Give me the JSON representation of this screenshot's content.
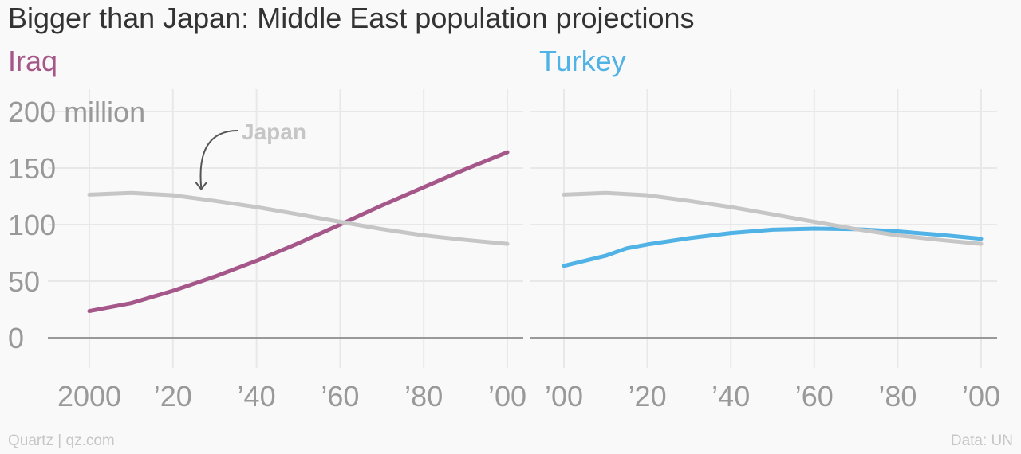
{
  "title": "Bigger than Japan: Middle East population projections",
  "source": "Quartz | qz.com",
  "credit": "Data: UN",
  "colors": {
    "background": "#f9f9f9",
    "iraq": "#a55789",
    "turkey": "#51b2e5",
    "japan": "#c6c6c6",
    "grid": "#e8e8e8",
    "axis_text": "#999999",
    "title_text": "#333333"
  },
  "chart_data": [
    {
      "type": "line",
      "title": "Iraq",
      "title_color": "#a55789",
      "x_range": [
        2000,
        2100
      ],
      "ylim": [
        0,
        200
      ],
      "y_ticks": [
        0,
        50,
        100,
        150,
        200
      ],
      "y_tick_labels": [
        "0",
        "50",
        "100",
        "150",
        "200 million"
      ],
      "x_ticks": [
        2000,
        2020,
        2040,
        2060,
        2080,
        2100
      ],
      "x_tick_labels": [
        "2000",
        "’20",
        "’40",
        "’60",
        "’80",
        "’00"
      ],
      "grid": true,
      "annotation": {
        "text": "Japan",
        "target_series": "Japan",
        "target_x": 2026,
        "target_y": 127
      },
      "series": [
        {
          "name": "Iraq",
          "color": "#a55789",
          "x": [
            2000,
            2010,
            2020,
            2030,
            2040,
            2050,
            2060,
            2070,
            2080,
            2090,
            2100
          ],
          "values": [
            23.5,
            30.5,
            41.5,
            54,
            68,
            83.5,
            100,
            117,
            133,
            149,
            164
          ]
        },
        {
          "name": "Japan",
          "color": "#c6c6c6",
          "x": [
            2000,
            2010,
            2020,
            2030,
            2040,
            2050,
            2060,
            2070,
            2080,
            2090,
            2100
          ],
          "values": [
            126.5,
            128,
            126,
            121,
            115.5,
            109,
            102.5,
            96,
            90.5,
            86.5,
            83
          ]
        }
      ]
    },
    {
      "type": "line",
      "title": "Turkey",
      "title_color": "#51b2e5",
      "x_range": [
        2000,
        2100
      ],
      "ylim": [
        0,
        200
      ],
      "y_ticks": [
        0,
        50,
        100,
        150,
        200
      ],
      "x_ticks": [
        2000,
        2020,
        2040,
        2060,
        2080,
        2100
      ],
      "x_tick_labels": [
        "’00",
        "’20",
        "’40",
        "’60",
        "’80",
        "’00"
      ],
      "grid": true,
      "series": [
        {
          "name": "Turkey",
          "color": "#51b2e5",
          "x": [
            2000,
            2010,
            2015,
            2020,
            2030,
            2040,
            2050,
            2060,
            2070,
            2080,
            2090,
            2100
          ],
          "values": [
            63.5,
            72.5,
            79,
            82.5,
            88,
            92.5,
            95.5,
            96.5,
            96,
            94,
            91,
            87.5
          ]
        },
        {
          "name": "Japan",
          "color": "#c6c6c6",
          "x": [
            2000,
            2010,
            2020,
            2030,
            2040,
            2050,
            2060,
            2070,
            2080,
            2090,
            2100
          ],
          "values": [
            126.5,
            128,
            126,
            121,
            115.5,
            109,
            102.5,
            96,
            90.5,
            86.5,
            83
          ]
        }
      ]
    }
  ]
}
